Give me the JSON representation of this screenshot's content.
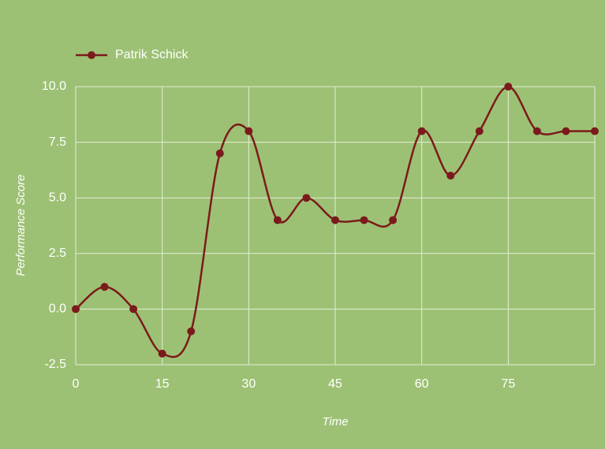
{
  "chart_data": {
    "type": "line",
    "x_label": "Time",
    "y_label": "Performance Score",
    "x": [
      0,
      5,
      10,
      15,
      20,
      25,
      30,
      35,
      40,
      45,
      50,
      55,
      60,
      65,
      70,
      75,
      80,
      85,
      90
    ],
    "series": [
      {
        "name": "Patrik Schick",
        "color": "#7b1a1c",
        "values": [
          0,
          1,
          0,
          -2,
          -1,
          7,
          8,
          4,
          5,
          4,
          4,
          4,
          8,
          6,
          8,
          10,
          8,
          8,
          8
        ]
      }
    ],
    "xlim": [
      0,
      90
    ],
    "xticks": [
      0,
      15,
      30,
      45,
      60,
      75
    ],
    "ylim": [
      -2.5,
      10
    ],
    "yticks": [
      {
        "value": -2.5,
        "label": "-2.5"
      },
      {
        "value": 0,
        "label": "0.0"
      },
      {
        "value": 2.5,
        "label": "2.5"
      },
      {
        "value": 5,
        "label": "5.0"
      },
      {
        "value": 7.5,
        "label": "7.5"
      },
      {
        "value": 10,
        "label": "10.0"
      }
    ],
    "grid": true,
    "legend": "top-left"
  }
}
